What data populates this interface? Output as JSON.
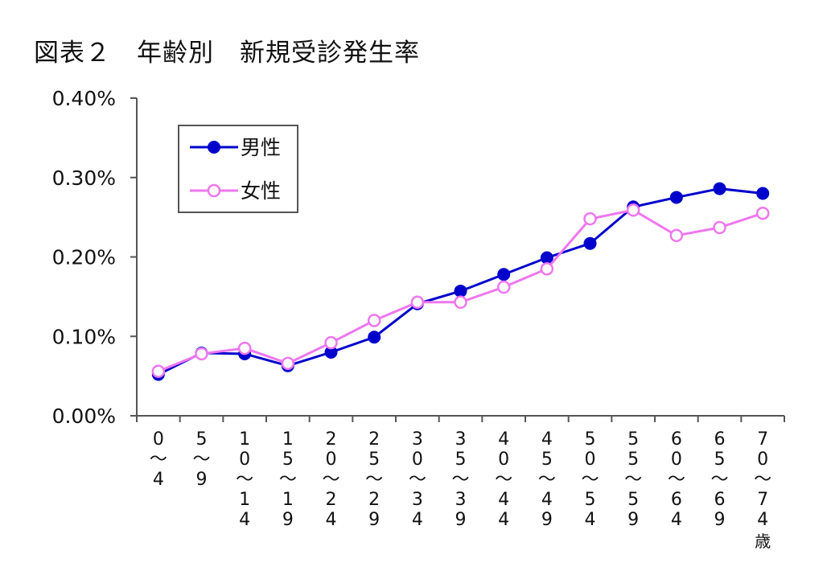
{
  "title": "図表２　年齢別　新規受診発生率",
  "chart_data": {
    "type": "line",
    "title": "図表２　年齢別　新規受診発生率",
    "categories": [
      "0〜4",
      "5〜9",
      "10〜14",
      "15〜19",
      "20〜24",
      "25〜29",
      "30〜34",
      "35〜39",
      "40〜44",
      "45〜49",
      "50〜54",
      "55〜59",
      "60〜64",
      "65〜69",
      "70〜74"
    ],
    "category_unit": "歳",
    "ylim": [
      0,
      0.4
    ],
    "yticks": [
      0,
      0.1,
      0.2,
      0.3,
      0.4
    ],
    "ytick_labels": [
      "0.00%",
      "0.10%",
      "0.20%",
      "0.30%",
      "0.40%"
    ],
    "grid": false,
    "legend_position": "top-left",
    "series": [
      {
        "name": "男性",
        "color": "#0000cc",
        "marker": "filled-circle",
        "values": [
          0.052,
          0.079,
          0.078,
          0.063,
          0.08,
          0.099,
          0.141,
          0.157,
          0.178,
          0.199,
          0.217,
          0.263,
          0.275,
          0.286,
          0.28
        ]
      },
      {
        "name": "女性",
        "color": "#ee77ee",
        "marker": "open-circle",
        "values": [
          0.056,
          0.078,
          0.085,
          0.066,
          0.092,
          0.12,
          0.143,
          0.143,
          0.162,
          0.185,
          0.248,
          0.259,
          0.227,
          0.237,
          0.255
        ]
      }
    ]
  }
}
